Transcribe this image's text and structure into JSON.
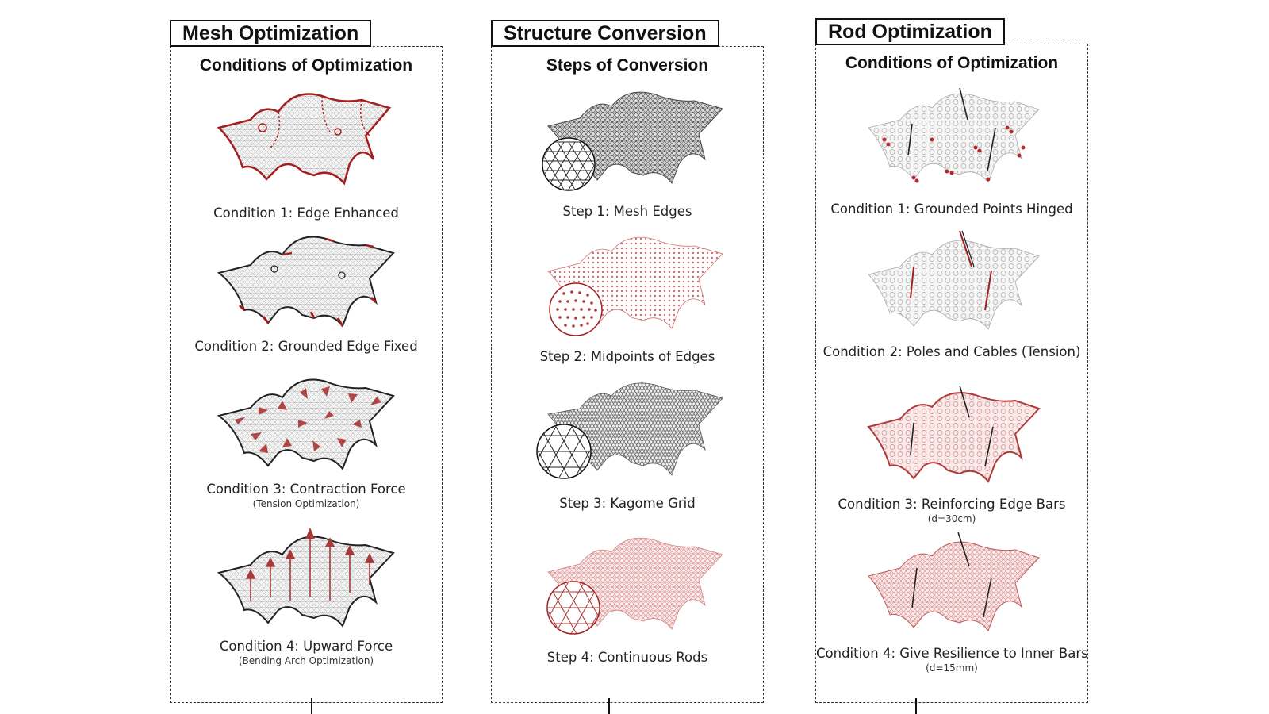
{
  "colors": {
    "accent": "#a31f1f",
    "line": "#111111",
    "mesh": "#9a9a9a"
  },
  "panels": [
    {
      "title": "Mesh Optimization",
      "subtitle": "Conditions of Optimization",
      "items": [
        {
          "caption": "Condition 1: Edge Enhanced",
          "note": ""
        },
        {
          "caption": "Condition 2: Grounded Edge Fixed",
          "note": ""
        },
        {
          "caption": "Condition 3: Contraction Force",
          "note": "(Tension Optimization)"
        },
        {
          "caption": "Condition 4: Upward Force",
          "note": "(Bending Arch Optimization)"
        }
      ]
    },
    {
      "title": "Structure Conversion",
      "subtitle": "Steps of Conversion",
      "items": [
        {
          "caption": "Step 1: Mesh Edges",
          "note": ""
        },
        {
          "caption": "Step 2: Midpoints of Edges",
          "note": ""
        },
        {
          "caption": "Step 3: Kagome Grid",
          "note": ""
        },
        {
          "caption": "Step 4: Continuous Rods",
          "note": ""
        }
      ]
    },
    {
      "title": "Rod Optimization",
      "subtitle": "Conditions of Optimization",
      "items": [
        {
          "caption": "Condition 1: Grounded Points Hinged",
          "note": ""
        },
        {
          "caption": "Condition 2: Poles and Cables (Tension)",
          "note": ""
        },
        {
          "caption": "Condition 3: Reinforcing Edge Bars",
          "note": "(d=30cm)"
        },
        {
          "caption": "Condition 4: Give Resilience to Inner Bars",
          "note": "(d=15mm)"
        }
      ]
    }
  ]
}
